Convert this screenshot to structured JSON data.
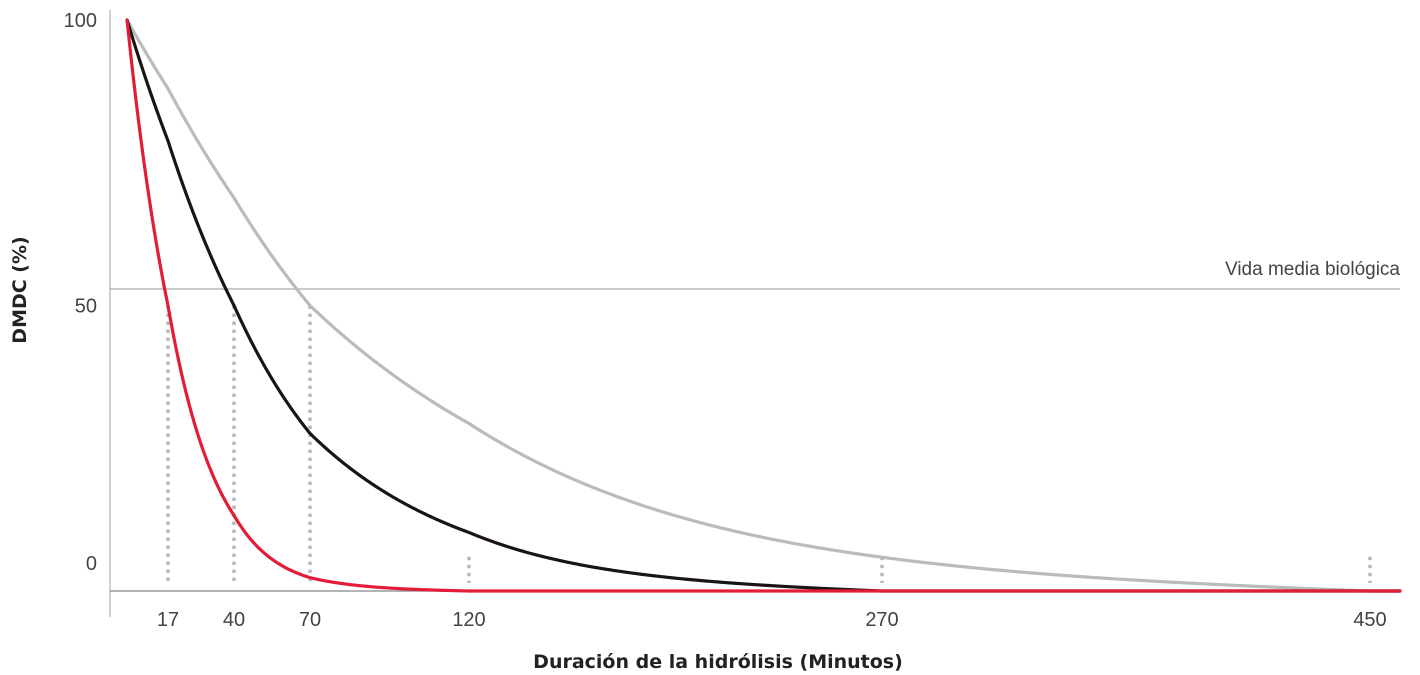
{
  "chart_data": {
    "type": "line",
    "xlabel": "Duración de la hidrólisis (Minutos)",
    "ylabel": "DMDC (%)",
    "x_ticks": [
      17,
      40,
      70,
      120,
      270,
      450
    ],
    "y_ticks": [
      0,
      50,
      100
    ],
    "xlim": [
      0,
      460
    ],
    "ylim": [
      0,
      100
    ],
    "reference_line": {
      "y": 50,
      "label": "Vida media biológica"
    },
    "grid": false,
    "series": [
      {
        "color": "#e31c38",
        "half_life": 17,
        "zero_at": 120,
        "x": [
          5,
          17,
          40,
          70,
          120,
          450
        ],
        "y": [
          100,
          50,
          22,
          6,
          0,
          0
        ]
      },
      {
        "color": "#1a1416",
        "half_life": 40,
        "zero_at": 270,
        "x": [
          5,
          40,
          70,
          120,
          270,
          450
        ],
        "y": [
          100,
          50,
          33,
          15,
          0,
          0
        ]
      },
      {
        "color": "#bbbbbb",
        "half_life": 70,
        "zero_at": 450,
        "x": [
          5,
          70,
          120,
          270,
          450
        ],
        "y": [
          100,
          50,
          30,
          8,
          0
        ]
      }
    ],
    "guide_lines": [
      {
        "x": 17,
        "y_top": 50
      },
      {
        "x": 40,
        "y_top": 50
      },
      {
        "x": 70,
        "y_top": 50
      },
      {
        "x": 120,
        "y_top": 6
      },
      {
        "x": 270,
        "y_top": 6
      },
      {
        "x": 450,
        "y_top": 6
      }
    ]
  }
}
